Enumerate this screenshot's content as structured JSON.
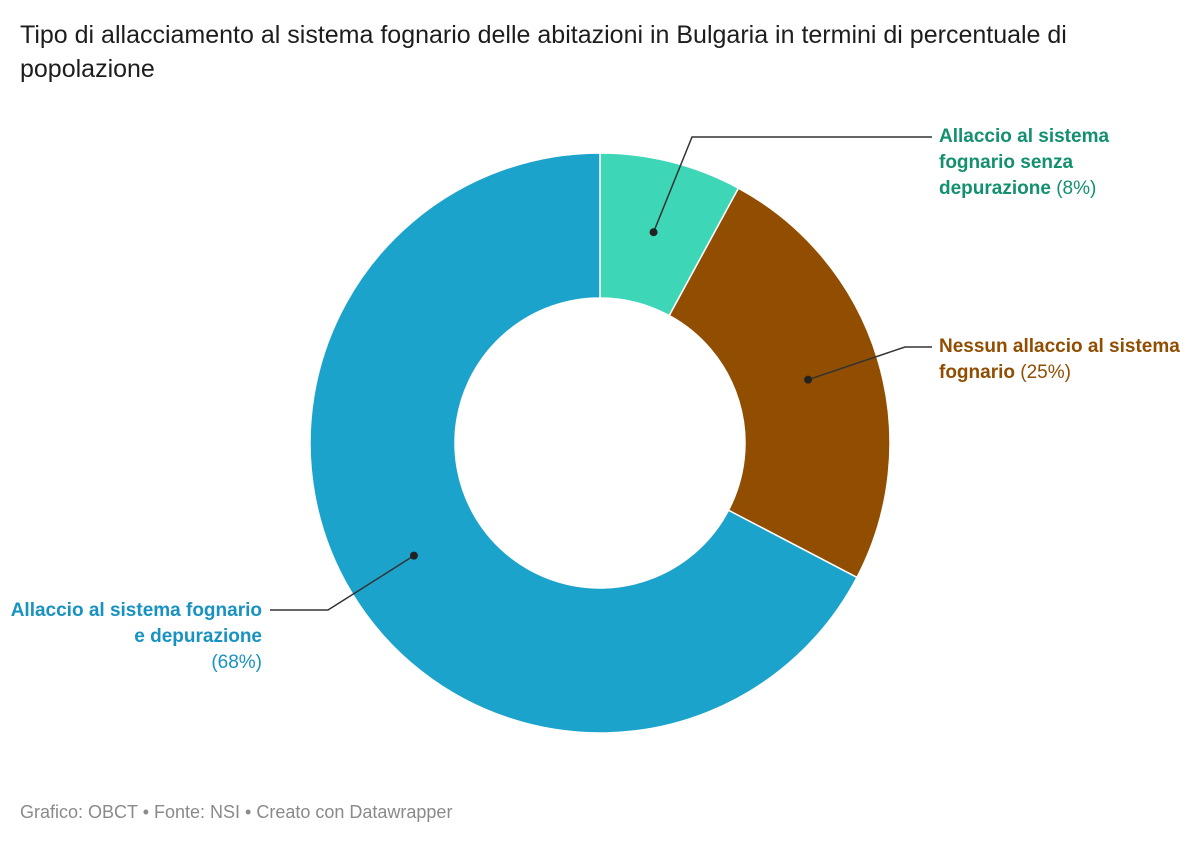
{
  "chart_data": {
    "type": "pie",
    "title": "Tipo di allacciamento al sistema fognario delle abitazioni in Bulgaria in termini di percentuale di popolazione",
    "donut": true,
    "slices": [
      {
        "label": "Allaccio al sistema fognario senza depurazione",
        "value": 8,
        "value_label": "(8%)",
        "color": "#3dd6b7",
        "label_color": "#12906f"
      },
      {
        "label": "Nessun allaccio al sistema fognario",
        "value": 25,
        "value_label": "(25%)",
        "color": "#914d00",
        "label_color": "#914d00"
      },
      {
        "label": "Allaccio al sistema fognario e depurazione",
        "value": 68,
        "value_label": "(68%)",
        "color": "#1ba3cc",
        "label_color": "#1892c0"
      }
    ]
  },
  "footer": "Grafico: OBCT • Fonte: NSI • Creato con Datawrapper"
}
